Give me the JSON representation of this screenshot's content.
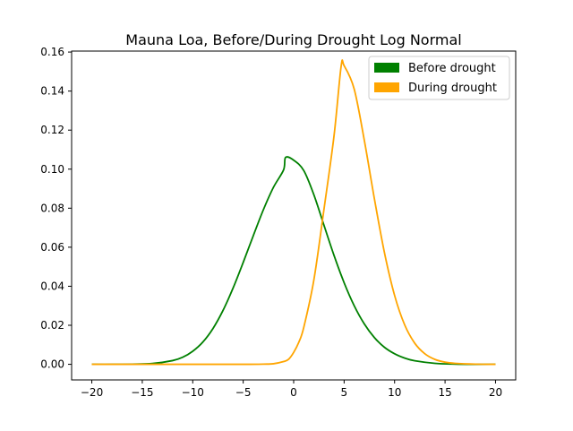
{
  "chart_data": {
    "type": "line",
    "title": "Mauna Loa, Before/During Drought Log Normal",
    "xlabel": "",
    "ylabel": "",
    "xlim": [
      -22,
      22
    ],
    "ylim": [
      -0.008,
      0.1605
    ],
    "xticks": [
      -20,
      -15,
      -10,
      -5,
      0,
      5,
      10,
      15,
      20
    ],
    "xtick_labels": [
      "−20",
      "−15",
      "−10",
      "−5",
      "0",
      "5",
      "10",
      "15",
      "20"
    ],
    "yticks": [
      0.0,
      0.02,
      0.04,
      0.06,
      0.08,
      0.1,
      0.12,
      0.14,
      0.16
    ],
    "ytick_labels": [
      "0.00",
      "0.02",
      "0.04",
      "0.06",
      "0.08",
      "0.10",
      "0.12",
      "0.14",
      "0.16"
    ],
    "grid": false,
    "legend_position": "top-right",
    "series": [
      {
        "name": "Before drought",
        "color": "#008000",
        "x": [
          -20,
          -18,
          -16,
          -14,
          -12,
          -11,
          -10,
          -9,
          -8,
          -7,
          -6,
          -5,
          -4,
          -3,
          -2,
          -1,
          -0.8,
          0,
          1,
          2,
          3,
          4,
          5,
          6,
          7,
          8,
          9,
          10,
          11,
          12,
          14,
          16,
          18,
          20
        ],
        "y": [
          0.0,
          0.0,
          0.0001,
          0.0004,
          0.0019,
          0.0036,
          0.0067,
          0.0114,
          0.0183,
          0.0276,
          0.0391,
          0.0522,
          0.0659,
          0.0792,
          0.0907,
          0.0996,
          0.106,
          0.1046,
          0.0993,
          0.0869,
          0.0713,
          0.0558,
          0.0418,
          0.03,
          0.0207,
          0.0137,
          0.0087,
          0.0054,
          0.0032,
          0.0018,
          0.0005,
          0.0001,
          0.0,
          0.0
        ]
      },
      {
        "name": "During drought",
        "color": "#FFA500",
        "x": [
          -20,
          -10,
          -5,
          -3,
          -2,
          -1,
          -0.5,
          0,
          0.5,
          1,
          2,
          3,
          4,
          4.7,
          5,
          6,
          7,
          8,
          9,
          10,
          11,
          12,
          13,
          14,
          15,
          16,
          18,
          20
        ],
        "y": [
          0.0,
          0.0,
          0.0,
          0.0001,
          0.0003,
          0.0014,
          0.0026,
          0.0061,
          0.0112,
          0.0189,
          0.0432,
          0.0793,
          0.1171,
          0.1526,
          0.153,
          0.141,
          0.1148,
          0.0848,
          0.0571,
          0.0353,
          0.0202,
          0.0108,
          0.0054,
          0.0025,
          0.0011,
          0.0005,
          0.0001,
          0.0
        ]
      }
    ]
  }
}
